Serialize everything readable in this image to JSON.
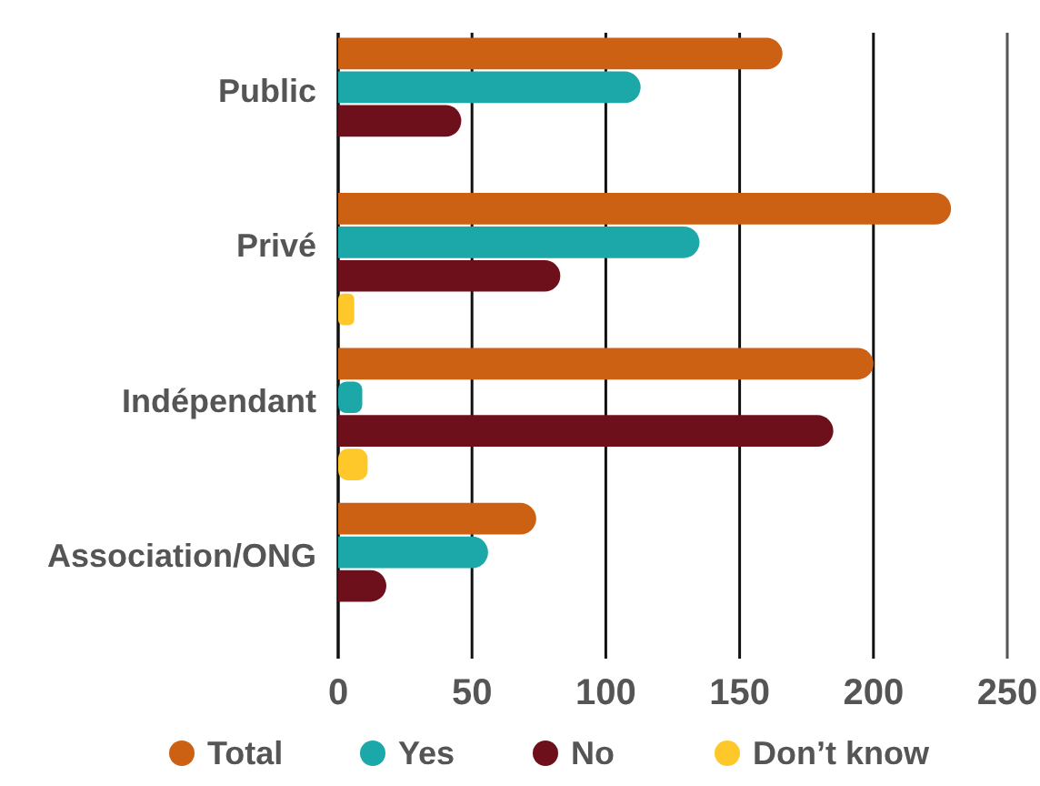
{
  "chart_data": {
    "type": "bar",
    "orientation": "horizontal",
    "categories": [
      "Public",
      "Privé",
      "Indépendant",
      "Association/ONG"
    ],
    "series": [
      {
        "name": "Total",
        "color": "#cc6114",
        "values": [
          166,
          229,
          200,
          74
        ]
      },
      {
        "name": "Yes",
        "color": "#1ca8a8",
        "values": [
          113,
          135,
          9,
          56
        ]
      },
      {
        "name": "No",
        "color": "#6e101b",
        "values": [
          46,
          83,
          185,
          18
        ]
      },
      {
        "name": "Don’t know",
        "color": "#ffc82a",
        "values": [
          null,
          6,
          11,
          null
        ]
      }
    ],
    "xlim": [
      0,
      250
    ],
    "xticks": [
      0,
      50,
      100,
      150,
      200,
      250
    ],
    "grid": "x",
    "legend": "bottom"
  }
}
